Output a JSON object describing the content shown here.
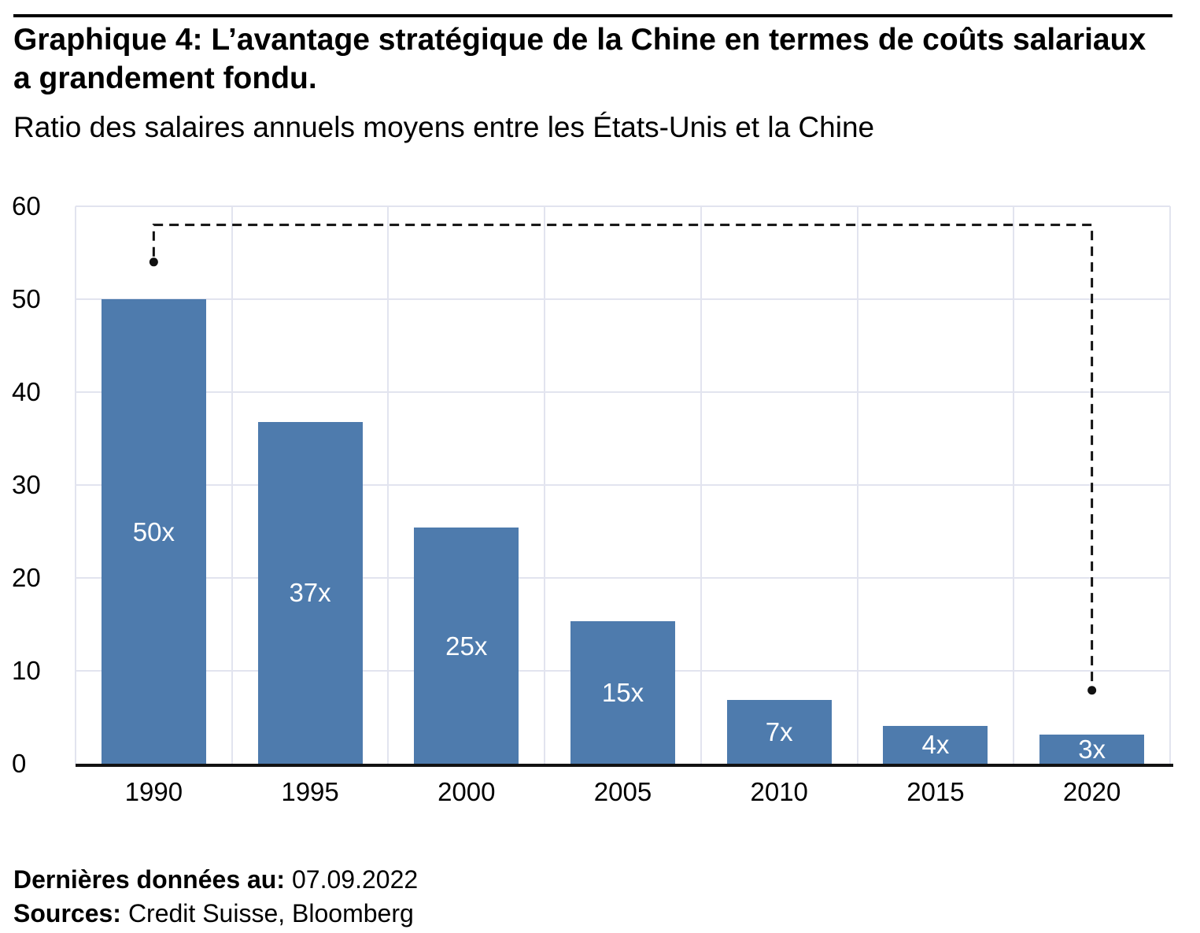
{
  "header": {
    "title": "Graphique 4: L’avantage stratégique de la Chine en termes de coûts salariaux a grandement fondu.",
    "subtitle": "Ratio des salaires annuels moyens entre les États-Unis et la Chine"
  },
  "chart_data": {
    "type": "bar",
    "title": "Ratio des salaires annuels moyens entre les États-Unis et la Chine",
    "categories": [
      "1990",
      "1995",
      "2000",
      "2005",
      "2010",
      "2015",
      "2020"
    ],
    "values": [
      50,
      36.8,
      25.4,
      15.3,
      6.9,
      4.1,
      3.1
    ],
    "bar_labels": [
      "50x",
      "37x",
      "25x",
      "15x",
      "7x",
      "4x",
      "3x"
    ],
    "xlabel": "",
    "ylabel": "",
    "ylim": [
      0,
      60
    ],
    "yticks": [
      0,
      10,
      20,
      30,
      40,
      50,
      60
    ],
    "grid": true,
    "legend": "none",
    "bar_color": "#4e7bad",
    "bar_label_color": "#ffffff",
    "gridline_color": "#e2e4ef",
    "axis_color": "#121212",
    "annotation": {
      "style": "dashed-connector",
      "from": {
        "category": "1990",
        "value": 54
      },
      "to": {
        "category": "2020",
        "value": 7.9
      },
      "elbow_value": 58,
      "color": "#111111"
    }
  },
  "footer": {
    "last_data_label": "Dernières données au:",
    "last_data_value": "07.09.2022",
    "sources_label": "Sources:",
    "sources_value": "Credit Suisse, Bloomberg"
  }
}
